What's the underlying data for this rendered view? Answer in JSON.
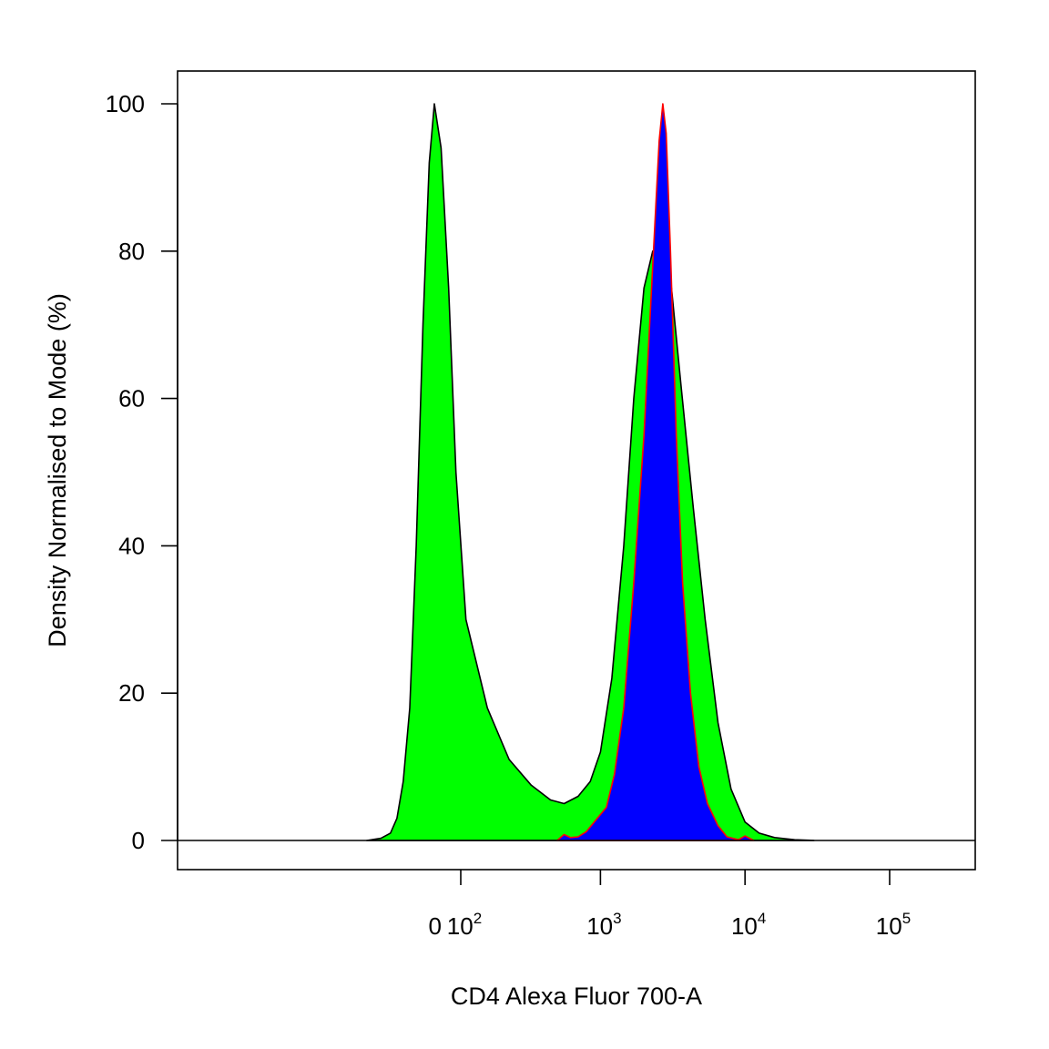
{
  "chart_data": {
    "type": "area",
    "xlabel": "CD4 Alexa Fluor 700-A",
    "ylabel": "Density Normalised to Mode (%)",
    "x_scale": "biexponential",
    "y_scale": "linear",
    "ylim": [
      0,
      100
    ],
    "grid": false,
    "y_ticks": [
      {
        "value": 0,
        "label": "0"
      },
      {
        "value": 20,
        "label": "20"
      },
      {
        "value": 40,
        "label": "40"
      },
      {
        "value": 60,
        "label": "60"
      },
      {
        "value": 80,
        "label": "80"
      },
      {
        "value": 100,
        "label": "100"
      }
    ],
    "x_ticks": [
      {
        "value": 0,
        "label": "0",
        "sup": ""
      },
      {
        "value": 100,
        "label": "10",
        "sup": "2"
      },
      {
        "value": 1000,
        "label": "10",
        "sup": "3"
      },
      {
        "value": 10000,
        "label": "10",
        "sup": "4"
      },
      {
        "value": 100000,
        "label": "10",
        "sup": "5"
      }
    ],
    "series": [
      {
        "fill": "#00ff00",
        "stroke": "#000000",
        "points": [
          [
            -800,
            0
          ],
          [
            -400,
            0.3
          ],
          [
            -250,
            1
          ],
          [
            -180,
            3
          ],
          [
            -130,
            8
          ],
          [
            -90,
            18
          ],
          [
            -60,
            40
          ],
          [
            -35,
            70
          ],
          [
            -15,
            92
          ],
          [
            0,
            100
          ],
          [
            20,
            94
          ],
          [
            45,
            75
          ],
          [
            75,
            50
          ],
          [
            110,
            30
          ],
          [
            160,
            18
          ],
          [
            230,
            11
          ],
          [
            330,
            7.5
          ],
          [
            450,
            5.5
          ],
          [
            560,
            5
          ],
          [
            700,
            6
          ],
          [
            850,
            8
          ],
          [
            1000,
            12
          ],
          [
            1200,
            22
          ],
          [
            1450,
            40
          ],
          [
            1700,
            60
          ],
          [
            2000,
            75
          ],
          [
            2300,
            80
          ],
          [
            2700,
            80
          ],
          [
            3100,
            75
          ],
          [
            3600,
            62
          ],
          [
            4400,
            45
          ],
          [
            5300,
            30
          ],
          [
            6500,
            16
          ],
          [
            8000,
            7
          ],
          [
            10000,
            2.5
          ],
          [
            12500,
            1
          ],
          [
            16000,
            0.4
          ],
          [
            22000,
            0.1
          ],
          [
            30000,
            0
          ]
        ]
      },
      {
        "fill": "#0000ff",
        "stroke": "#ff0000",
        "points": [
          [
            500,
            0
          ],
          [
            560,
            0.8
          ],
          [
            620,
            0.4
          ],
          [
            700,
            0.5
          ],
          [
            800,
            1.2
          ],
          [
            950,
            3
          ],
          [
            1100,
            4.5
          ],
          [
            1250,
            9
          ],
          [
            1450,
            18
          ],
          [
            1700,
            35
          ],
          [
            2000,
            55
          ],
          [
            2300,
            78
          ],
          [
            2550,
            95
          ],
          [
            2700,
            100
          ],
          [
            2850,
            96
          ],
          [
            3050,
            80
          ],
          [
            3350,
            55
          ],
          [
            3700,
            35
          ],
          [
            4200,
            20
          ],
          [
            4800,
            10
          ],
          [
            5500,
            5
          ],
          [
            6500,
            2
          ],
          [
            7500,
            0.5
          ],
          [
            9000,
            0.1
          ],
          [
            10000,
            0.6
          ],
          [
            11500,
            0
          ]
        ]
      }
    ]
  }
}
